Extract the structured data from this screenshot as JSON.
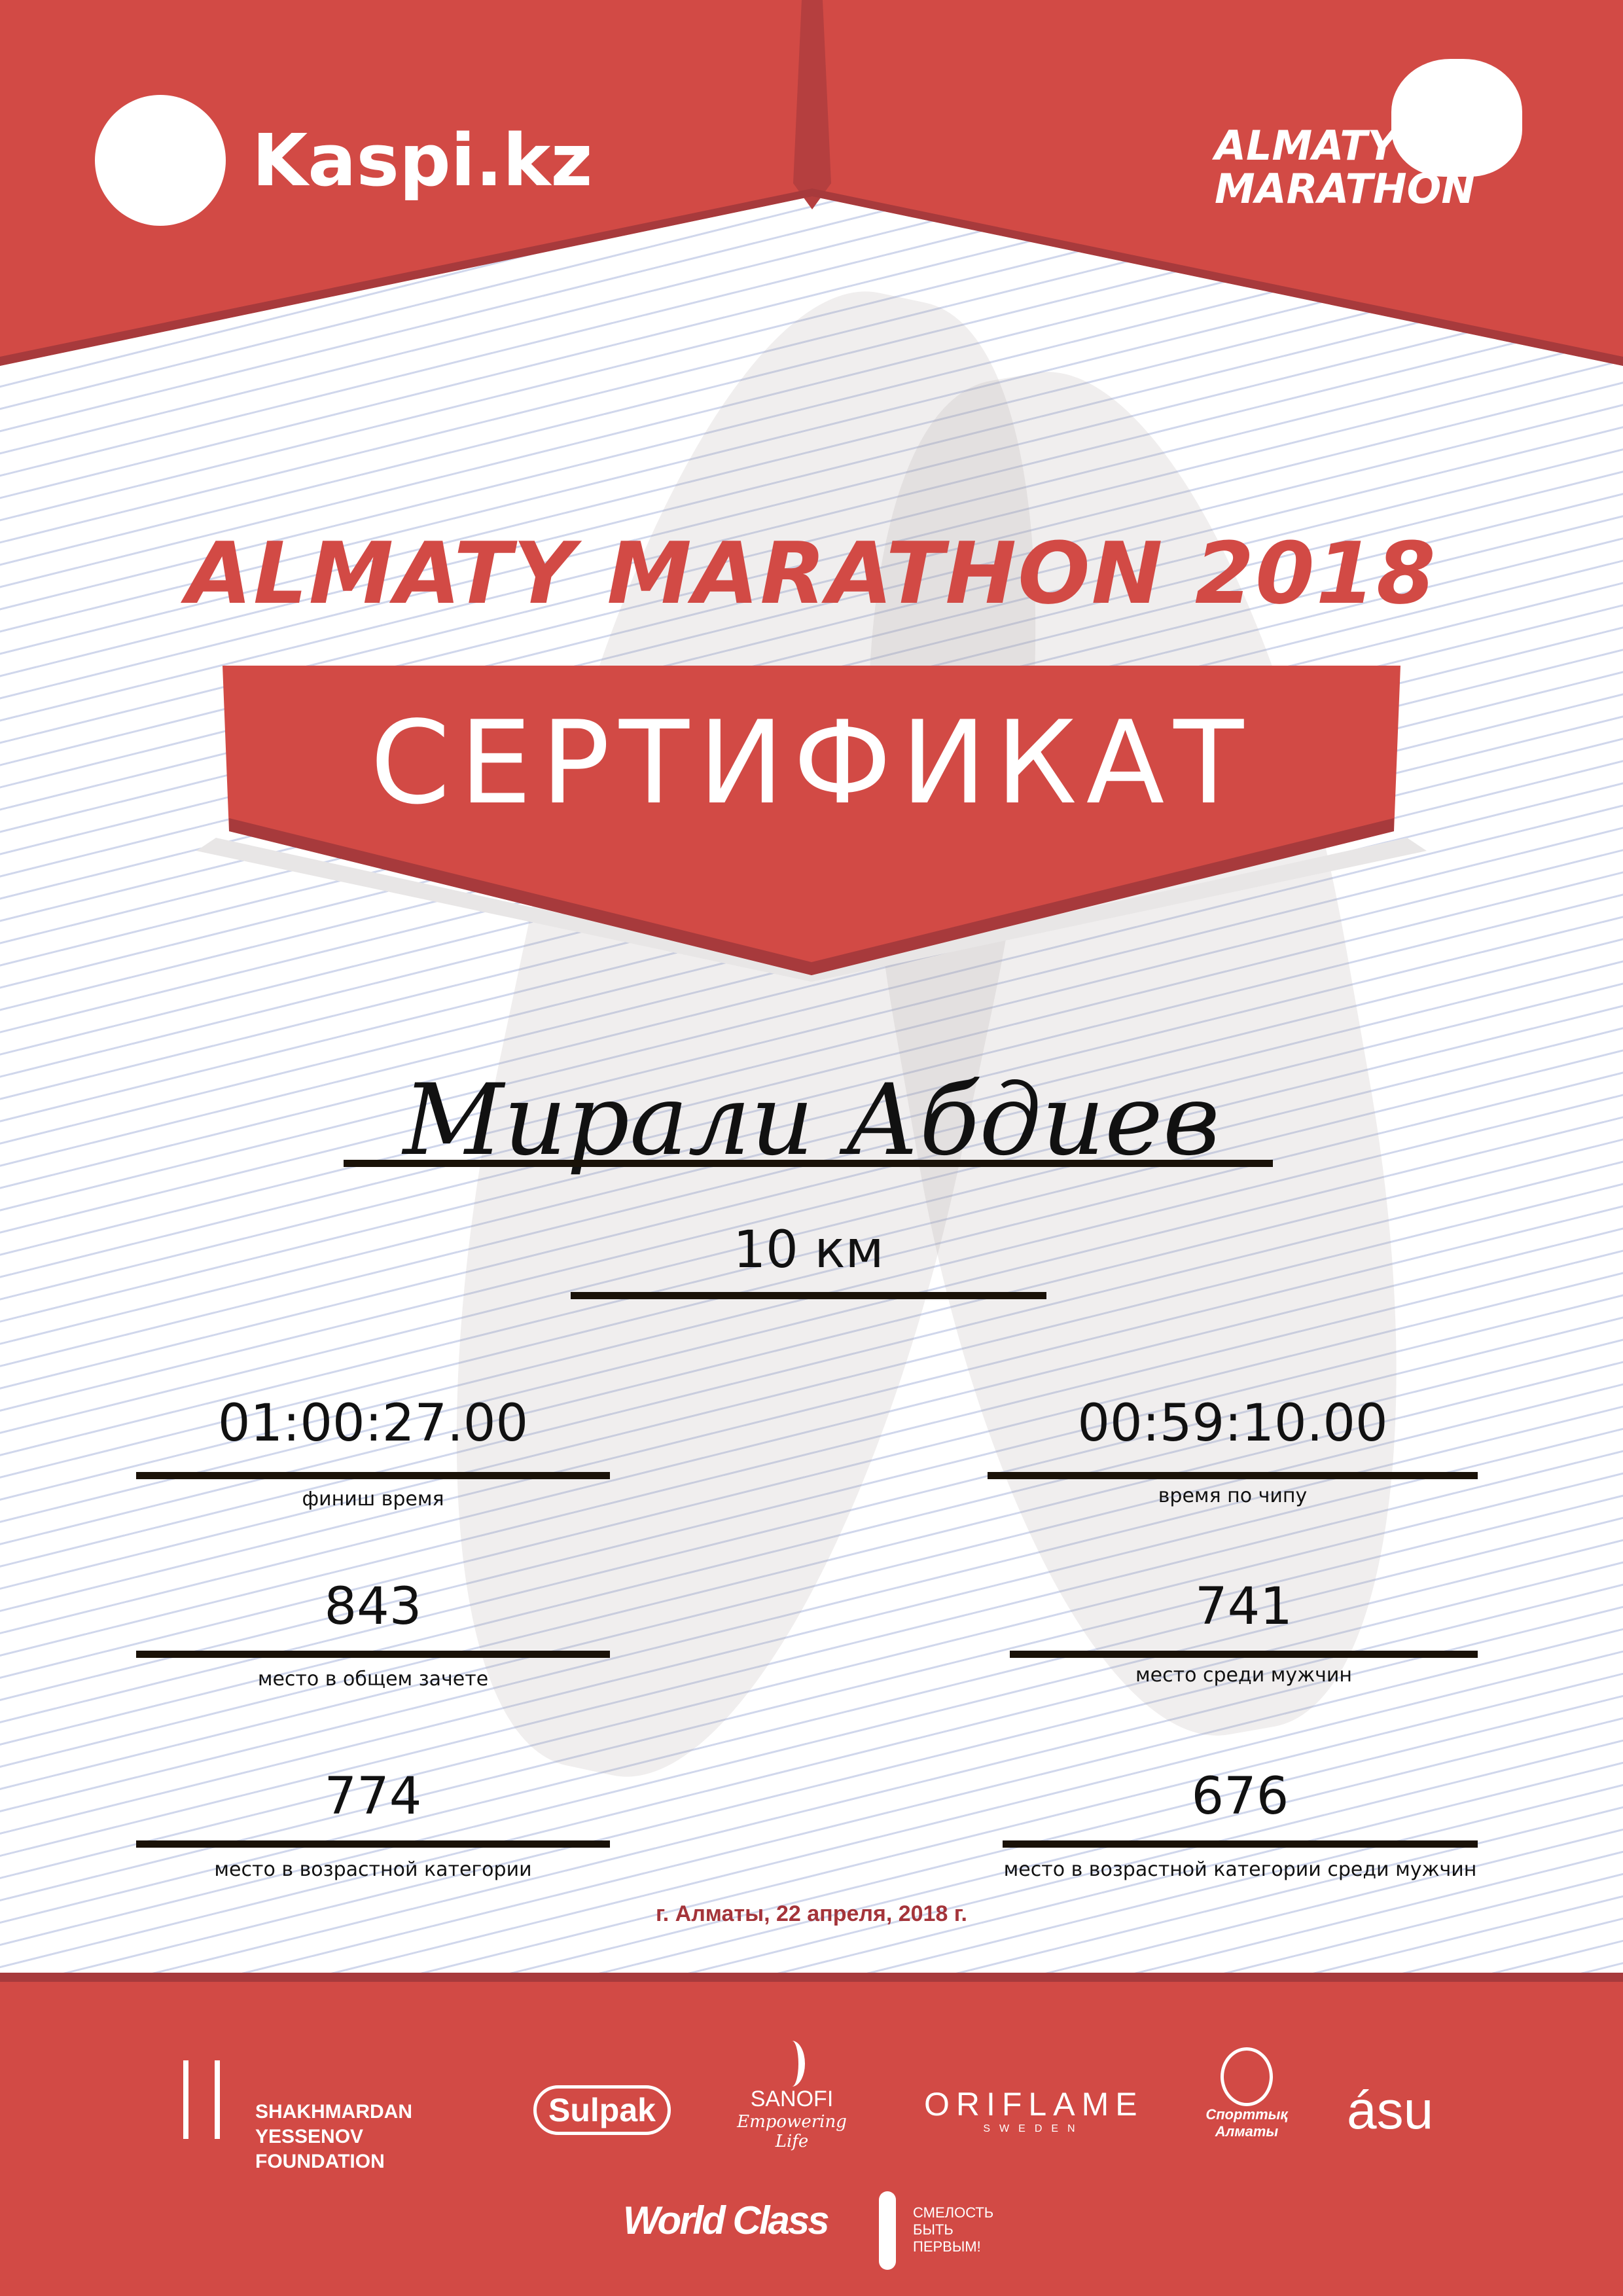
{
  "header": {
    "kaspi_logo": "Kaspi.kz",
    "event_logo": "ALMATY MARATHON"
  },
  "title": "ALMATY MARATHON 2018",
  "certificate_label": "СЕРТИФИКАТ",
  "participant_name": "Мирали Абдиев",
  "distance": "10 км",
  "results": {
    "finish_time": {
      "value": "01:00:27.00",
      "label": "финиш время"
    },
    "chip_time": {
      "value": "00:59:10.00",
      "label": "время по чипу"
    },
    "overall_place": {
      "value": "843",
      "label": "место в общем зачете"
    },
    "men_place": {
      "value": "741",
      "label": "место среди мужчин"
    },
    "age_place": {
      "value": "774",
      "label": "место в возрастной категории"
    },
    "age_men_place": {
      "value": "676",
      "label": "место в возрастной категории среди мужчин"
    }
  },
  "date_line": "г. Алматы, 22 апреля, 2018 г.",
  "sponsors": {
    "yessenov": "SHAKHMARDAN YESSENOV FOUNDATION",
    "sulpak": "Sulpak",
    "sanofi": "SANOFI",
    "sanofi_tag": "Empowering Life",
    "oriflame": "ORIFLAME",
    "oriflame_sub": "SWEDEN",
    "sport_almaty": "Спорттық Алматы",
    "asu": "ásu",
    "worldclass": "World Class",
    "smelost": "СМЕЛОСТЬ БЫТЬ ПЕРВЫМ!"
  },
  "colors": {
    "brand_red": "#d24a45",
    "dark_red": "#a73a3c",
    "date_red": "#a4343a"
  }
}
